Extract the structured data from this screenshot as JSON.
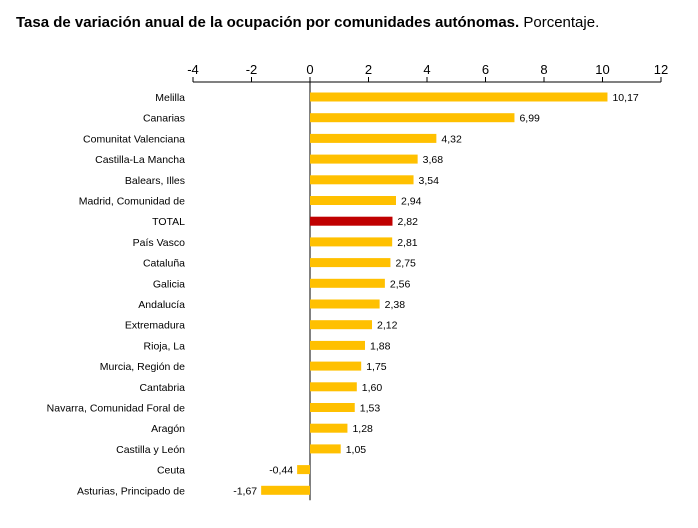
{
  "title_bold": "Tasa de variación anual de la ocupación por comunidades autónomas.",
  "title_light": " Porcentaje.",
  "colors": {
    "bar": "#FFC000",
    "highlight": "#C00000",
    "axis": "#000000",
    "text": "#000000"
  },
  "chart_data": {
    "type": "bar",
    "orientation": "horizontal",
    "title": "Tasa de variación anual de la ocupación por comunidades autónomas. Porcentaje.",
    "xlim": [
      -4,
      12
    ],
    "ticks": [
      "-4",
      "-2",
      "0",
      "2",
      "4",
      "6",
      "8",
      "10",
      "12"
    ],
    "tick_values": [
      -4,
      -2,
      0,
      2,
      4,
      6,
      8,
      10,
      12
    ],
    "highlight": "TOTAL",
    "categories": [
      "Melilla",
      "Canarias",
      "Comunitat Valenciana",
      "Castilla-La Mancha",
      "Balears, Illes",
      "Madrid, Comunidad de",
      "TOTAL",
      "País Vasco",
      "Cataluña",
      "Galicia",
      "Andalucía",
      "Extremadura",
      "Rioja, La",
      "Murcia, Región de",
      "Cantabria",
      "Navarra, Comunidad Foral de",
      "Aragón",
      "Castilla y León",
      "Ceuta",
      "Asturias, Principado de"
    ],
    "values": [
      10.17,
      6.99,
      4.32,
      3.68,
      3.54,
      2.94,
      2.82,
      2.81,
      2.75,
      2.56,
      2.38,
      2.12,
      1.88,
      1.75,
      1.6,
      1.53,
      1.28,
      1.05,
      -0.44,
      -1.67
    ],
    "labels": [
      "10,17",
      "6,99",
      "4,32",
      "3,68",
      "3,54",
      "2,94",
      "2,82",
      "2,81",
      "2,75",
      "2,56",
      "2,38",
      "2,12",
      "1,88",
      "1,75",
      "1,60",
      "1,53",
      "1,28",
      "1,05",
      "-0,44",
      "-1,67"
    ]
  }
}
